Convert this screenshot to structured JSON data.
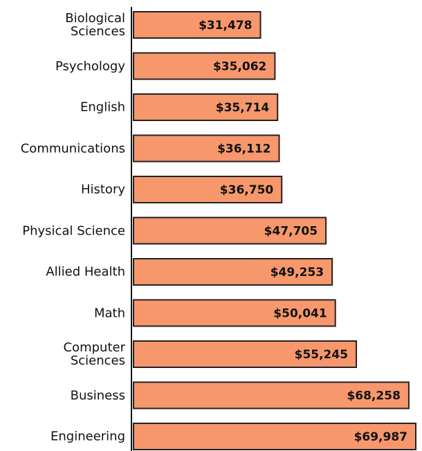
{
  "chart_data": {
    "type": "barh",
    "categories": [
      "Biological\nSciences",
      "Psychology",
      "English",
      "Communications",
      "History",
      "Physical Science",
      "Allied Health",
      "Math",
      "Computer\nSciences",
      "Business",
      "Engineering"
    ],
    "values": [
      31478,
      35062,
      35714,
      36112,
      36750,
      47705,
      49253,
      50041,
      55245,
      68258,
      69987
    ],
    "value_labels": [
      "$31,478",
      "$35,062",
      "$35,714",
      "$36,112",
      "$36,750",
      "$47,705",
      "$49,253",
      "$50,041",
      "$55,245",
      "$68,258",
      "$69,987"
    ],
    "color": "#f7976c"
  }
}
